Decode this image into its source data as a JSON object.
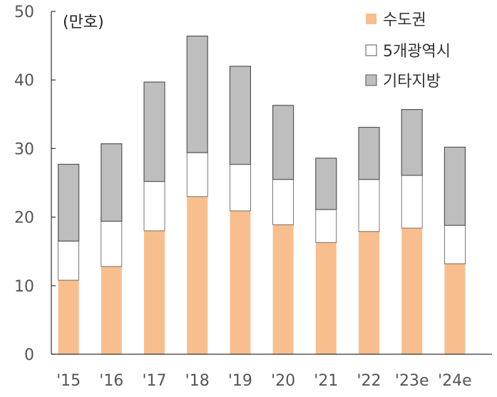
{
  "chart_data": {
    "type": "bar",
    "stacked": true,
    "unit_label": "(만호)",
    "categories": [
      "'15",
      "'16",
      "'17",
      "'18",
      "'19",
      "'20",
      "'21",
      "'22",
      "'23e",
      "'24e"
    ],
    "series": [
      {
        "name": "수도권",
        "color": "#F8BE8E",
        "values": [
          10.8,
          12.8,
          18.0,
          23.0,
          20.9,
          18.9,
          16.3,
          17.9,
          18.4,
          13.2
        ]
      },
      {
        "name": "5개광역시",
        "color": "#FFFFFF",
        "values": [
          5.7,
          6.6,
          7.2,
          6.4,
          6.8,
          6.6,
          4.8,
          7.6,
          7.7,
          5.6
        ]
      },
      {
        "name": "기타지방",
        "color": "#BEBEBE",
        "values": [
          11.2,
          11.3,
          14.5,
          17.0,
          14.3,
          10.8,
          7.5,
          7.6,
          9.6,
          11.4
        ]
      }
    ],
    "ylim": [
      0,
      50
    ],
    "yticks": [
      "0",
      "10",
      "20",
      "30",
      "40",
      "50"
    ],
    "legend_position": "top-right",
    "grid": false
  }
}
